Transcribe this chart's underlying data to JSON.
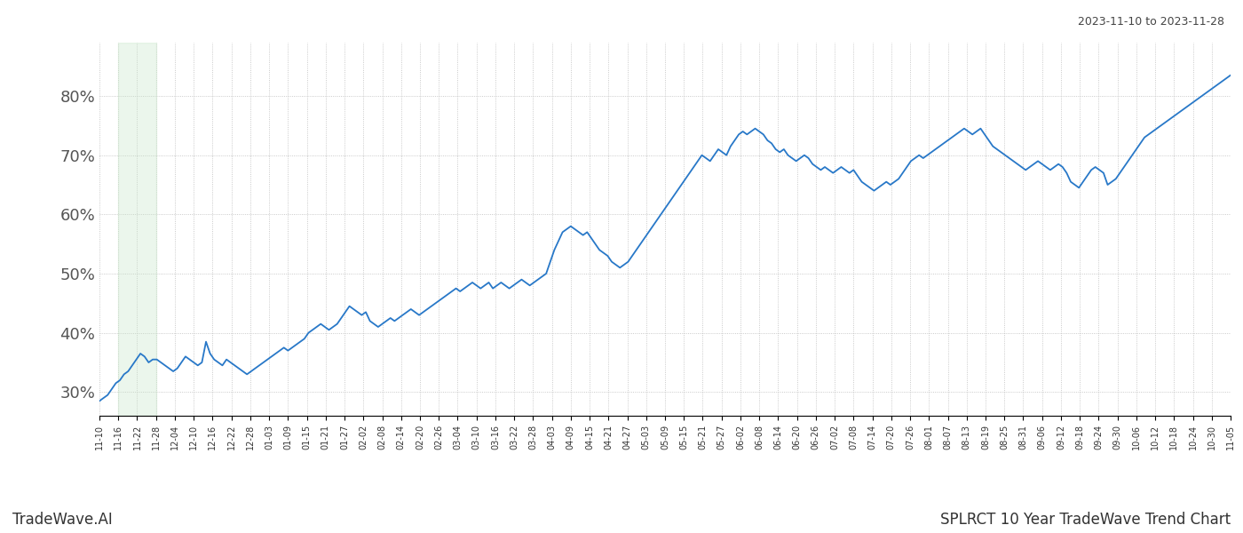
{
  "title_top_right": "2023-11-10 to 2023-11-28",
  "title_bottom_left": "TradeWave.AI",
  "title_bottom_right": "SPLRCT 10 Year TradeWave Trend Chart",
  "line_color": "#2878c8",
  "line_width": 1.3,
  "highlight_color": "#c8e6c9",
  "highlight_alpha": 0.35,
  "background_color": "#ffffff",
  "grid_color": "#bbbbbb",
  "grid_style": ":",
  "y_ticks": [
    30,
    40,
    50,
    60,
    70,
    80
  ],
  "y_min": 26,
  "y_max": 89,
  "x_tick_labels": [
    "11-10",
    "11-16",
    "11-22",
    "11-28",
    "12-04",
    "12-10",
    "12-16",
    "12-22",
    "12-28",
    "01-03",
    "01-09",
    "01-15",
    "01-21",
    "01-27",
    "02-02",
    "02-08",
    "02-14",
    "02-20",
    "02-26",
    "03-04",
    "03-10",
    "03-16",
    "03-22",
    "03-28",
    "04-03",
    "04-09",
    "04-15",
    "04-21",
    "04-27",
    "05-03",
    "05-09",
    "05-15",
    "05-21",
    "05-27",
    "06-02",
    "06-08",
    "06-14",
    "06-20",
    "06-26",
    "07-02",
    "07-08",
    "07-14",
    "07-20",
    "07-26",
    "08-01",
    "08-07",
    "08-13",
    "08-19",
    "08-25",
    "08-31",
    "09-06",
    "09-12",
    "09-18",
    "09-24",
    "09-30",
    "10-06",
    "10-12",
    "10-18",
    "10-24",
    "10-30",
    "11-05"
  ],
  "highlight_label_start": "11-16",
  "highlight_label_end": "11-28",
  "y_values": [
    28.5,
    29.0,
    29.5,
    30.5,
    31.5,
    32.0,
    33.0,
    33.5,
    34.5,
    35.5,
    36.5,
    36.0,
    35.0,
    35.5,
    35.5,
    35.0,
    34.5,
    34.0,
    33.5,
    34.0,
    35.0,
    36.0,
    35.5,
    35.0,
    34.5,
    35.0,
    38.5,
    36.5,
    35.5,
    35.0,
    34.5,
    35.5,
    35.0,
    34.5,
    34.0,
    33.5,
    33.0,
    33.5,
    34.0,
    34.5,
    35.0,
    35.5,
    36.0,
    36.5,
    37.0,
    37.5,
    37.0,
    37.5,
    38.0,
    38.5,
    39.0,
    40.0,
    40.5,
    41.0,
    41.5,
    41.0,
    40.5,
    41.0,
    41.5,
    42.5,
    43.5,
    44.5,
    44.0,
    43.5,
    43.0,
    43.5,
    42.0,
    41.5,
    41.0,
    41.5,
    42.0,
    42.5,
    42.0,
    42.5,
    43.0,
    43.5,
    44.0,
    43.5,
    43.0,
    43.5,
    44.0,
    44.5,
    45.0,
    45.5,
    46.0,
    46.5,
    47.0,
    47.5,
    47.0,
    47.5,
    48.0,
    48.5,
    48.0,
    47.5,
    48.0,
    48.5,
    47.5,
    48.0,
    48.5,
    48.0,
    47.5,
    48.0,
    48.5,
    49.0,
    48.5,
    48.0,
    48.5,
    49.0,
    49.5,
    50.0,
    52.0,
    54.0,
    55.5,
    57.0,
    57.5,
    58.0,
    57.5,
    57.0,
    56.5,
    57.0,
    56.0,
    55.0,
    54.0,
    53.5,
    53.0,
    52.0,
    51.5,
    51.0,
    51.5,
    52.0,
    53.0,
    54.0,
    55.0,
    56.0,
    57.0,
    58.0,
    59.0,
    60.0,
    61.0,
    62.0,
    63.0,
    64.0,
    65.0,
    66.0,
    67.0,
    68.0,
    69.0,
    70.0,
    69.5,
    69.0,
    70.0,
    71.0,
    70.5,
    70.0,
    71.5,
    72.5,
    73.5,
    74.0,
    73.5,
    74.0,
    74.5,
    74.0,
    73.5,
    72.5,
    72.0,
    71.0,
    70.5,
    71.0,
    70.0,
    69.5,
    69.0,
    69.5,
    70.0,
    69.5,
    68.5,
    68.0,
    67.5,
    68.0,
    67.5,
    67.0,
    67.5,
    68.0,
    67.5,
    67.0,
    67.5,
    66.5,
    65.5,
    65.0,
    64.5,
    64.0,
    64.5,
    65.0,
    65.5,
    65.0,
    65.5,
    66.0,
    67.0,
    68.0,
    69.0,
    69.5,
    70.0,
    69.5,
    70.0,
    70.5,
    71.0,
    71.5,
    72.0,
    72.5,
    73.0,
    73.5,
    74.0,
    74.5,
    74.0,
    73.5,
    74.0,
    74.5,
    73.5,
    72.5,
    71.5,
    71.0,
    70.5,
    70.0,
    69.5,
    69.0,
    68.5,
    68.0,
    67.5,
    68.0,
    68.5,
    69.0,
    68.5,
    68.0,
    67.5,
    68.0,
    68.5,
    68.0,
    67.0,
    65.5,
    65.0,
    64.5,
    65.5,
    66.5,
    67.5,
    68.0,
    67.5,
    67.0,
    65.0,
    65.5,
    66.0,
    67.0,
    68.0,
    69.0,
    70.0,
    71.0,
    72.0,
    73.0,
    73.5,
    74.0,
    74.5,
    75.0,
    75.5,
    76.0,
    76.5,
    77.0,
    77.5,
    78.0,
    78.5,
    79.0,
    79.5,
    80.0,
    80.5,
    81.0,
    81.5,
    82.0,
    82.5,
    83.0,
    83.5
  ]
}
